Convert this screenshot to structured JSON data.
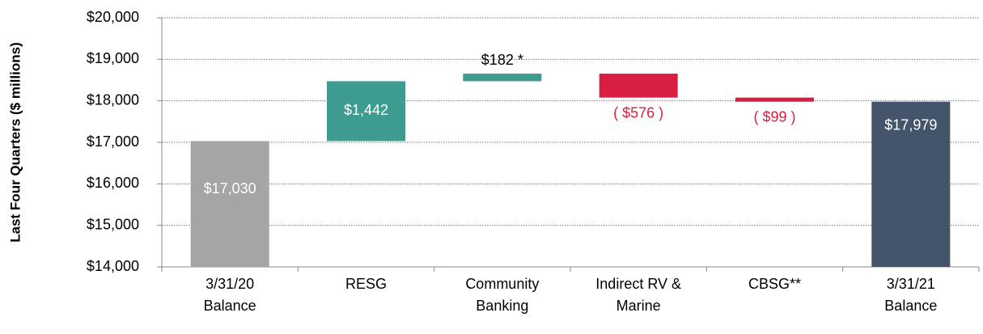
{
  "chart_data": {
    "type": "waterfall",
    "ylabel": "Last Four Quarters ($ millions)",
    "categories": [
      [
        "3/31/20",
        "Balance"
      ],
      [
        "RESG"
      ],
      [
        "Community",
        "Banking"
      ],
      [
        "Indirect RV &",
        "Marine"
      ],
      [
        "CBSG**"
      ],
      [
        "3/31/21",
        "Balance"
      ]
    ],
    "values": [
      17030,
      1442,
      182,
      -576,
      -99,
      17979
    ],
    "value_labels": [
      "$17,030",
      "$1,442",
      "$182 *",
      "( $576 )",
      "( $99 )",
      "$17,979"
    ],
    "colors": [
      "#a5a5a5",
      "#3d9b8f",
      "#d91f41",
      "#44546a"
    ],
    "ylim": [
      14000,
      20000
    ],
    "yticks": [
      {
        "value": 14000,
        "label": "$14,000"
      },
      {
        "value": 15000,
        "label": "$15,000"
      },
      {
        "value": 16000,
        "label": "$16,000"
      },
      {
        "value": 17000,
        "label": "$17,000"
      },
      {
        "value": 18000,
        "label": "$18,000"
      },
      {
        "value": 19000,
        "label": "$19,000"
      },
      {
        "value": 20000,
        "label": "$20,000"
      }
    ],
    "grid": true
  }
}
